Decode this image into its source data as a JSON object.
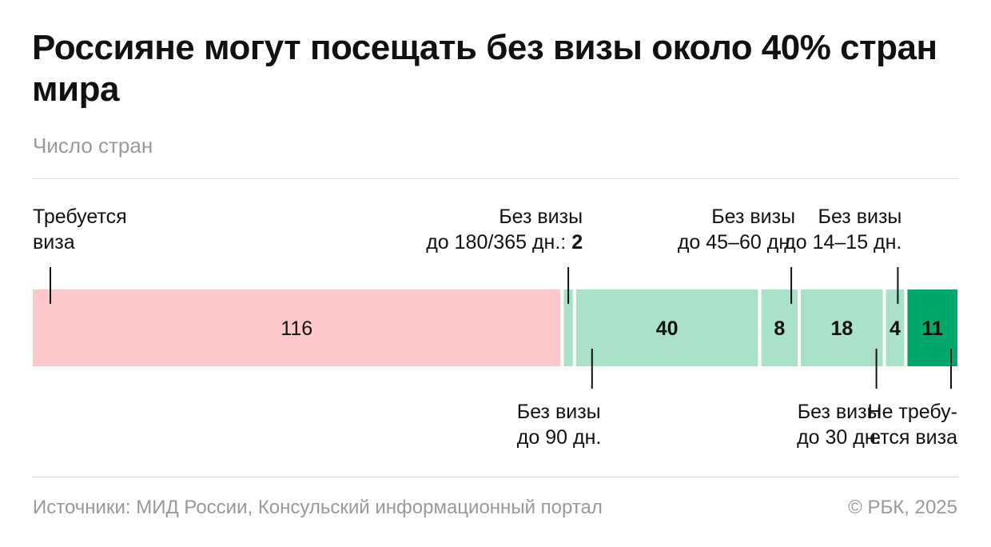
{
  "title": "Россияне могут посещать без визы около 40% стран мира",
  "subtitle": "Число стран",
  "source": "Источники: МИД России, Консульский информационный портал",
  "copyright": "© РБК, 2025",
  "chart_data": {
    "type": "bar",
    "orientation": "horizontal-stacked",
    "categories": [
      "Требуется виза",
      "Без визы до 180/365 дн.",
      "Без визы до 90 дн.",
      "Без визы до 45–60 дн.",
      "Без визы до 30 дн.",
      "Без визы до 14–15 дн.",
      "Не требуется виза"
    ],
    "values": [
      116,
      2,
      40,
      8,
      18,
      4,
      11
    ],
    "colors": [
      "#fdc8c9",
      "#a9e1c9",
      "#a9e1c9",
      "#a9e1c9",
      "#a9e1c9",
      "#a9e1c9",
      "#00a86b"
    ],
    "segments": [
      {
        "value_text": "116",
        "value_bold": false,
        "show_value": true,
        "label_pos": "above",
        "label_align": "start",
        "label_lines": [
          "Требуется",
          "виза"
        ]
      },
      {
        "value_text": "2",
        "value_bold": true,
        "show_value": false,
        "label_pos": "above",
        "label_align": "end",
        "label_lines": [
          "Без визы",
          "до 180/365 дн.: "
        ],
        "label_inline_value": "2"
      },
      {
        "value_text": "40",
        "value_bold": true,
        "show_value": true,
        "label_pos": "below",
        "label_align": "start",
        "label_lines": [
          "Без визы",
          "до 90 дн."
        ]
      },
      {
        "value_text": "8",
        "value_bold": true,
        "show_value": true,
        "label_pos": "above",
        "label_align": "end",
        "label_lines": [
          "Без визы",
          "до 45–60 дн."
        ]
      },
      {
        "value_text": "18",
        "value_bold": true,
        "show_value": true,
        "label_pos": "below",
        "label_align": "end",
        "label_lines": [
          "Без визы",
          "до 30 дн."
        ]
      },
      {
        "value_text": "4",
        "value_bold": true,
        "show_value": true,
        "label_pos": "above",
        "label_align": "end",
        "label_lines": [
          "Без визы",
          "до 14–15 дн."
        ]
      },
      {
        "value_text": "11",
        "value_bold": true,
        "show_value": true,
        "label_pos": "below",
        "label_align": "end",
        "label_lines": [
          "Не требу-",
          "ется виза"
        ]
      }
    ],
    "grid": false,
    "legend": "none"
  }
}
